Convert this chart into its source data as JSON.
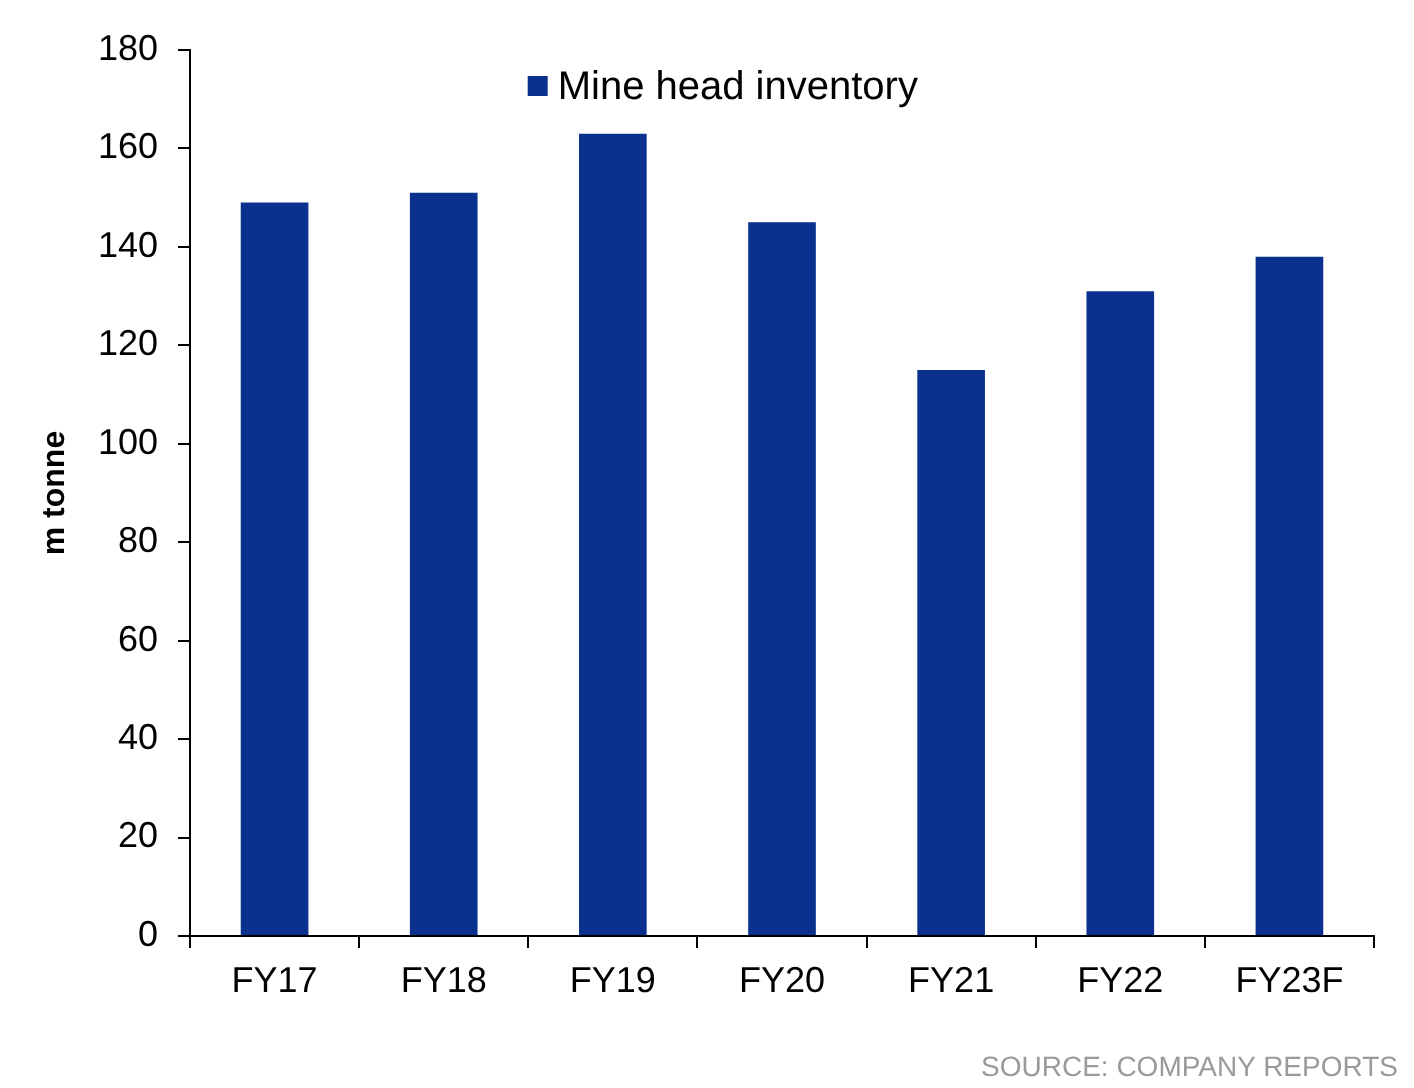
{
  "chart_data": {
    "type": "bar",
    "ylabel": "m tonne",
    "categories": [
      "FY17",
      "FY18",
      "FY19",
      "FY20",
      "FY21",
      "FY22",
      "FY23F"
    ],
    "series": [
      {
        "name": "Mine head inventory",
        "color": "#0b318f",
        "values": [
          149,
          151,
          163,
          145,
          115,
          131,
          138
        ]
      }
    ],
    "ylim": [
      0,
      180
    ],
    "yticks": [
      0,
      20,
      40,
      60,
      80,
      100,
      120,
      140,
      160,
      180
    ],
    "legend": "top",
    "annotations": [
      "SOURCE: COMPANY REPORTS"
    ]
  }
}
